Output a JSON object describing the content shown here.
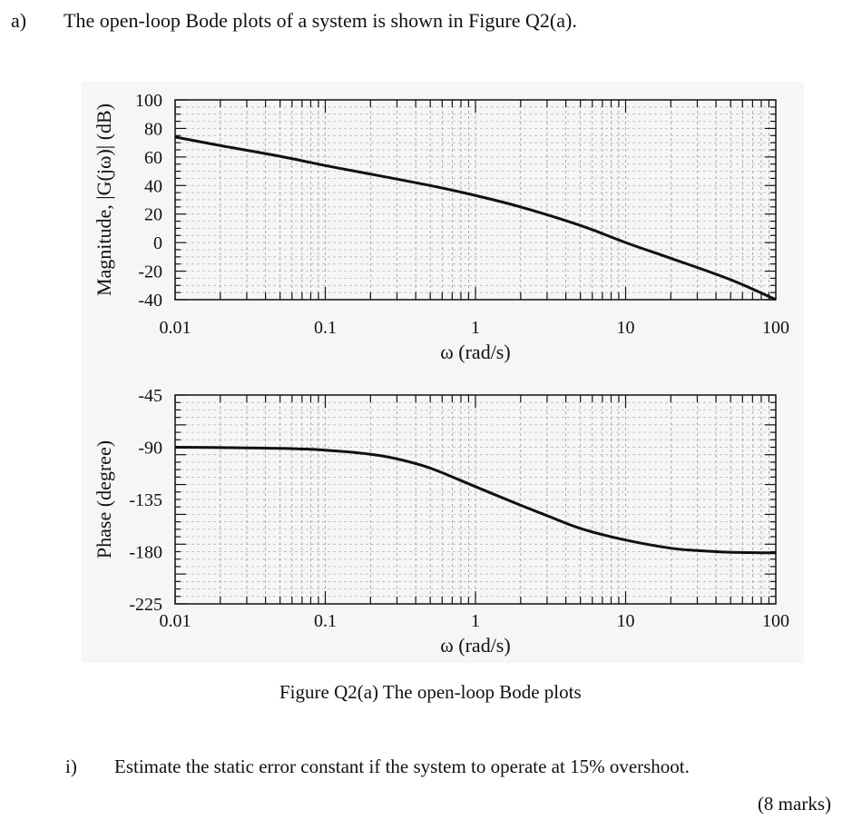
{
  "question": {
    "label": "a)",
    "text": "The open-loop Bode plots of a system is shown in Figure Q2(a)."
  },
  "caption": "Figure Q2(a) The open-loop Bode plots",
  "subquestion": {
    "label": "i)",
    "text": "Estimate the static error constant if the system to operate at 15% overshoot.",
    "marks": "(8 marks)"
  },
  "chart_data": [
    {
      "type": "line",
      "title": "",
      "xlabel": "ω (rad/s)",
      "ylabel": "Magnitude, |G(jω)| (dB)",
      "xscale": "log",
      "xlim": [
        0.01,
        100
      ],
      "ylim": [
        -40,
        100
      ],
      "xticks": [
        "0.01",
        "0.1",
        "1",
        "10",
        "100"
      ],
      "xtick_values": [
        0.01,
        0.1,
        1,
        10,
        100
      ],
      "yticks": [
        "100",
        "80",
        "60",
        "40",
        "20",
        "0",
        "-20",
        "-40"
      ],
      "ytick_values": [
        100,
        80,
        60,
        40,
        20,
        0,
        -20,
        -40
      ],
      "grid": true,
      "series": [
        {
          "x": [
            0.01,
            0.02,
            0.05,
            0.1,
            0.2,
            0.5,
            1,
            2,
            5,
            10,
            20,
            50,
            100
          ],
          "values": [
            74,
            68,
            60.5,
            54,
            48,
            40,
            33,
            25,
            12,
            0,
            -11,
            -26,
            -40
          ]
        }
      ]
    },
    {
      "type": "line",
      "title": "",
      "xlabel": "ω (rad/s)",
      "ylabel": "Phase (degree)",
      "xscale": "log",
      "xlim": [
        0.01,
        100
      ],
      "ylim": [
        -225,
        -45
      ],
      "xticks": [
        "0.01",
        "0.1",
        "1",
        "10",
        "100"
      ],
      "xtick_values": [
        0.01,
        0.1,
        1,
        10,
        100
      ],
      "yticks": [
        "-45",
        "-90",
        "-135",
        "-180",
        "-225"
      ],
      "ytick_values": [
        -45,
        -90,
        -135,
        -180,
        -225
      ],
      "grid": true,
      "series": [
        {
          "x": [
            0.01,
            0.02,
            0.05,
            0.1,
            0.2,
            0.3,
            0.5,
            1,
            2,
            3,
            5,
            10,
            20,
            30,
            50,
            100
          ],
          "values": [
            -90,
            -90.3,
            -91,
            -92.5,
            -96,
            -100,
            -108,
            -124,
            -140,
            -149,
            -160,
            -170,
            -177,
            -179,
            -180.5,
            -181
          ]
        }
      ]
    }
  ]
}
